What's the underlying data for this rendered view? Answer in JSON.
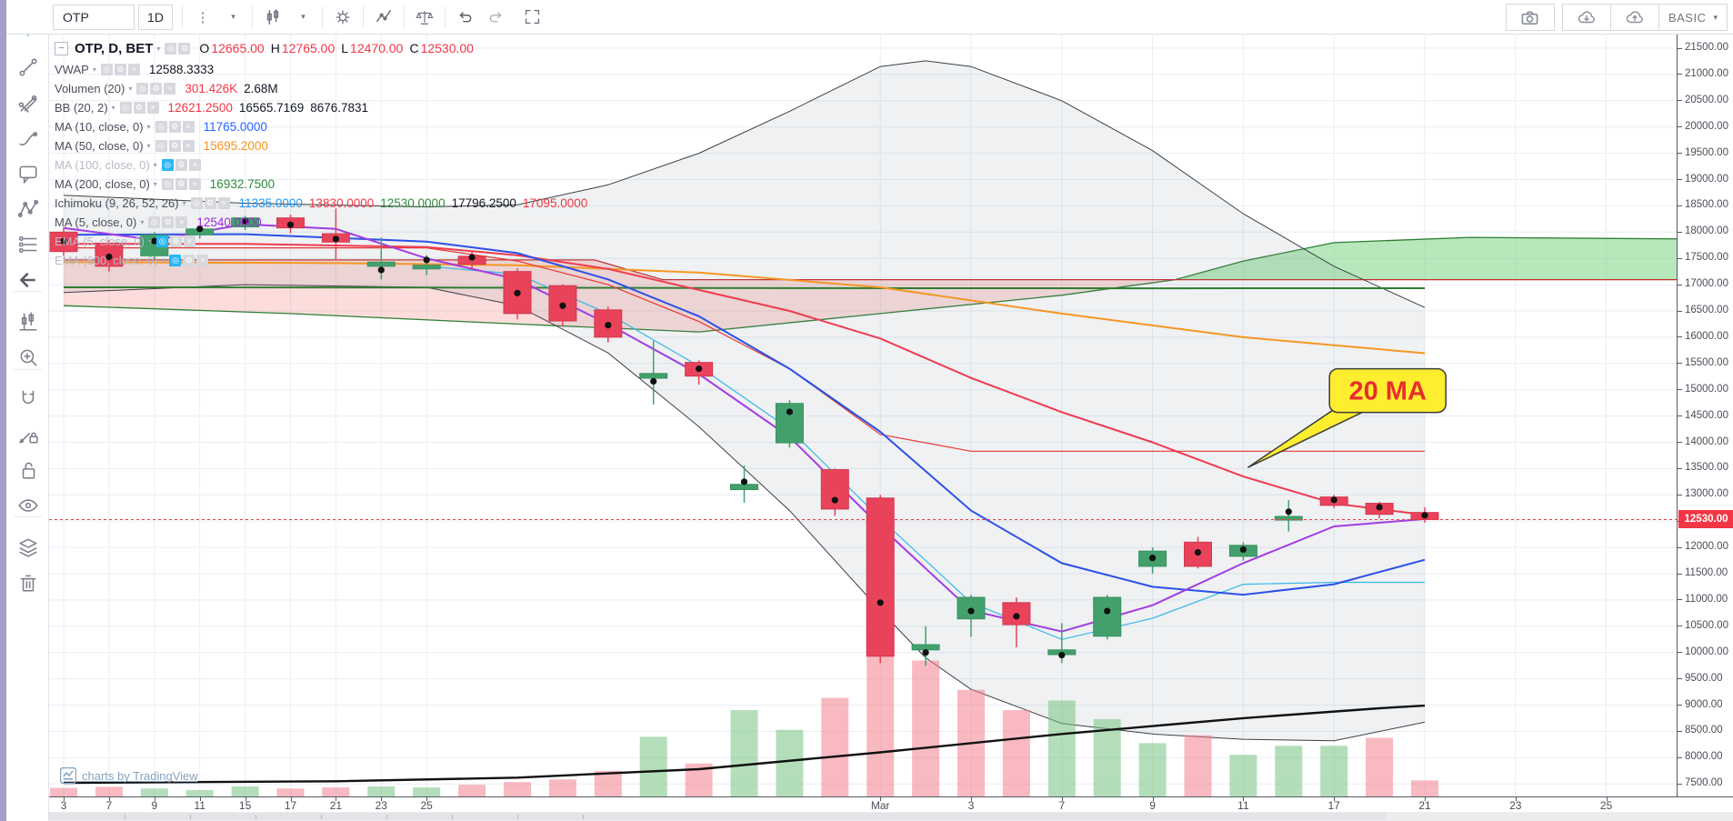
{
  "toolbar": {
    "symbol": "OTP",
    "interval": "1D",
    "left_icons": [
      "style-menu-dots",
      "style-menu-caret",
      "candles-icon",
      "candles-caret",
      "gear-icon",
      "indicators-icon",
      "compare-icon",
      "undo-icon",
      "redo-icon",
      "fullscreen-icon"
    ],
    "right": {
      "buttons": [
        "camera-icon",
        "cloud-load-icon",
        "cloud-save-icon"
      ],
      "plan_label": "BASIC"
    }
  },
  "sidebar": {
    "tools": [
      {
        "name": "crosshair",
        "group": 0
      },
      {
        "name": "trend-line",
        "group": 0
      },
      {
        "name": "pitchfork",
        "group": 0
      },
      {
        "name": "brush",
        "group": 0
      },
      {
        "name": "text-note",
        "group": 0
      },
      {
        "name": "xabcd-pattern",
        "group": 0
      },
      {
        "name": "forecast",
        "group": 0
      },
      {
        "name": "hide-drawings-arrow",
        "group": 0
      },
      {
        "name": "bar-pattern",
        "group": 1
      },
      {
        "name": "zoom-in",
        "group": 1
      },
      {
        "name": "magnet",
        "group": 2
      },
      {
        "name": "drawing-lock",
        "group": 2
      },
      {
        "name": "lock-all",
        "group": 2
      },
      {
        "name": "hide-all",
        "group": 2
      },
      {
        "name": "object-tree",
        "group": 3
      },
      {
        "name": "remove-drawings",
        "group": 3
      }
    ]
  },
  "legend": {
    "rows": [
      {
        "label": "OTP, D, BET",
        "main": true,
        "buttons": [
          "eye",
          "gear"
        ],
        "values": [
          [
            "O",
            "dark"
          ],
          [
            "12665.00",
            "red"
          ],
          [
            "H",
            "dark"
          ],
          [
            "12765.00",
            "red"
          ],
          [
            "L",
            "dark"
          ],
          [
            "12470.00",
            "red"
          ],
          [
            "C",
            "dark"
          ],
          [
            "12530.00",
            "red"
          ]
        ]
      },
      {
        "label": "VWAP",
        "buttons": [
          "eye",
          "gear",
          "close"
        ],
        "values": [
          [
            "12588.3333",
            "dark"
          ]
        ]
      },
      {
        "label": "Volumen (20)",
        "buttons": [
          "eye",
          "gear",
          "close"
        ],
        "values": [
          [
            "301.426K",
            "red"
          ],
          [
            "2.68M",
            "dark"
          ]
        ]
      },
      {
        "label": "BB (20, 2)",
        "buttons": [
          "eye",
          "gear",
          "close"
        ],
        "values": [
          [
            "12621.2500",
            "red"
          ],
          [
            "16565.7169",
            "dark"
          ],
          [
            "8676.7831",
            "dark"
          ]
        ]
      },
      {
        "label": "MA (10, close, 0)",
        "buttons": [
          "eye",
          "gear",
          "close"
        ],
        "values": [
          [
            "11765.0000",
            "blue"
          ]
        ]
      },
      {
        "label": "MA (50, close, 0)",
        "buttons": [
          "eye",
          "gear",
          "close"
        ],
        "values": [
          [
            "15695.2000",
            "orange"
          ]
        ]
      },
      {
        "label": "MA (100, close, 0)",
        "dimmed": true,
        "buttons": [
          "eye-active",
          "gear",
          "close"
        ],
        "values": []
      },
      {
        "label": "MA (200, close, 0)",
        "buttons": [
          "eye",
          "gear",
          "close"
        ],
        "values": [
          [
            "16932.7500",
            "green"
          ]
        ]
      },
      {
        "label": "Ichimoku (9, 26, 52, 26)",
        "buttons": [
          "eye",
          "gear",
          "close"
        ],
        "values": [
          [
            "11335.0000",
            "lightblue"
          ],
          [
            "13830.0000",
            "red"
          ],
          [
            "12530.0000",
            "green"
          ],
          [
            "17796.2500",
            "dark"
          ],
          [
            "17095.0000",
            "red"
          ]
        ]
      },
      {
        "label": "MA (5, close, 0)",
        "buttons": [
          "eye",
          "gear",
          "close"
        ],
        "values": [
          [
            "12540.0000",
            "purple"
          ]
        ]
      },
      {
        "label": "EMA (5, close, 0)",
        "dimmed": true,
        "buttons": [
          "eye-active",
          "gear",
          "close"
        ],
        "values": []
      },
      {
        "label": "EMA (600, close, 0)",
        "dimmed": true,
        "buttons": [
          "eye-active",
          "gear",
          "close"
        ],
        "values": []
      }
    ]
  },
  "chart_data": {
    "type": "candlestick",
    "symbol": "OTP",
    "exchange": "BET",
    "interval": "D",
    "last_ohlc": {
      "open": 12665.0,
      "high": 12765.0,
      "low": 12470.0,
      "close": 12530.0
    },
    "price_axis": {
      "max": 21500,
      "min": 7500,
      "step": 500,
      "last_price": "12530.00"
    },
    "candles_ohlcdv": [
      [
        18000,
        18090,
        17550,
        17630,
        17830,
        0.16,
        0
      ],
      [
        17790,
        17850,
        17250,
        17350,
        17530,
        0.18,
        0
      ],
      [
        17550,
        18000,
        17480,
        17950,
        17830,
        0.15,
        1
      ],
      [
        17950,
        18130,
        17880,
        18060,
        18060,
        0.12,
        1
      ],
      [
        18100,
        18310,
        18040,
        18270,
        18210,
        0.19,
        1
      ],
      [
        18270,
        18330,
        17980,
        18080,
        18140,
        0.15,
        0
      ],
      [
        17970,
        18450,
        17460,
        17810,
        17870,
        0.17,
        0
      ],
      [
        17350,
        17900,
        17100,
        17430,
        17280,
        0.19,
        1
      ],
      [
        17300,
        17560,
        17180,
        17370,
        17470,
        0.17,
        1
      ],
      [
        17540,
        17630,
        17290,
        17390,
        17520,
        0.22,
        0
      ],
      [
        17250,
        17310,
        16340,
        16450,
        16840,
        0.27,
        0
      ],
      [
        16980,
        17010,
        16200,
        16310,
        16600,
        0.32,
        0
      ],
      [
        16520,
        16580,
        15900,
        16000,
        16230,
        0.48,
        0
      ],
      [
        15220,
        15930,
        14720,
        15310,
        15160,
        1.12,
        1
      ],
      [
        15520,
        15560,
        15100,
        15260,
        15400,
        0.62,
        0
      ],
      [
        13100,
        13560,
        12850,
        13200,
        13250,
        1.62,
        1
      ],
      [
        13990,
        14800,
        13900,
        14740,
        14580,
        1.25,
        1
      ],
      [
        13480,
        13500,
        12600,
        12730,
        12900,
        1.85,
        0
      ],
      [
        12940,
        13000,
        9800,
        9930,
        10950,
        2.9,
        0
      ],
      [
        10050,
        10500,
        9750,
        10150,
        10000,
        2.55,
        0
      ],
      [
        10640,
        11100,
        10300,
        11050,
        10790,
        2.0,
        0
      ],
      [
        10950,
        11050,
        10100,
        10530,
        10690,
        1.62,
        0
      ],
      [
        9960,
        10560,
        9800,
        10050,
        9950,
        1.8,
        1
      ],
      [
        10310,
        11100,
        10250,
        11050,
        10790,
        1.45,
        1
      ],
      [
        11640,
        12000,
        11500,
        11930,
        11800,
        1.0,
        1
      ],
      [
        12100,
        12200,
        11600,
        11640,
        11905,
        1.15,
        0
      ],
      [
        11830,
        12100,
        11750,
        12040,
        11960,
        0.78,
        1
      ],
      [
        12520,
        12900,
        12300,
        12590,
        12680,
        0.95,
        1
      ],
      [
        12960,
        13000,
        12750,
        12800,
        12905,
        0.95,
        1
      ],
      [
        12840,
        12870,
        12550,
        12630,
        12765,
        1.1,
        0
      ],
      [
        12665,
        12765,
        12470,
        12530,
        12610,
        0.3,
        0
      ]
    ],
    "volume_max_m": 2.9,
    "time_labels": [
      {
        "i": 0,
        "t": "3"
      },
      {
        "i": 1,
        "t": "7"
      },
      {
        "i": 2,
        "t": "9"
      },
      {
        "i": 3,
        "t": "11"
      },
      {
        "i": 4,
        "t": "15"
      },
      {
        "i": 5,
        "t": "17"
      },
      {
        "i": 6,
        "t": "21"
      },
      {
        "i": 7,
        "t": "23"
      },
      {
        "i": 8,
        "t": "25"
      },
      {
        "i": 18,
        "t": "Mar"
      },
      {
        "i": 20,
        "t": "3"
      },
      {
        "i": 22,
        "t": "7"
      },
      {
        "i": 24,
        "t": "9"
      },
      {
        "i": 26,
        "t": "11"
      },
      {
        "i": 28,
        "t": "17"
      },
      {
        "i": 30,
        "t": "21"
      },
      {
        "i": 32,
        "t": "23"
      },
      {
        "i": 34,
        "t": "25"
      }
    ],
    "bb": {
      "fill": "rgba(135,144,162,0.13)",
      "line_color": "#3d4043",
      "upper": [
        [
          0,
          18700
        ],
        [
          4,
          18550
        ],
        [
          8,
          18480
        ],
        [
          10,
          18520
        ],
        [
          12,
          18900
        ],
        [
          14,
          19500
        ],
        [
          16,
          20300
        ],
        [
          18,
          21150
        ],
        [
          19,
          21260
        ],
        [
          20,
          21150
        ],
        [
          22,
          20500
        ],
        [
          24,
          19550
        ],
        [
          26,
          18350
        ],
        [
          28,
          17350
        ],
        [
          30,
          16566
        ]
      ],
      "lower": [
        [
          0,
          16850
        ],
        [
          4,
          17000
        ],
        [
          8,
          16950
        ],
        [
          10,
          16600
        ],
        [
          12,
          15700
        ],
        [
          14,
          14300
        ],
        [
          16,
          12700
        ],
        [
          18,
          10800
        ],
        [
          19,
          9900
        ],
        [
          20,
          9300
        ],
        [
          22,
          8650
        ],
        [
          24,
          8450
        ],
        [
          26,
          8350
        ],
        [
          28,
          8320
        ],
        [
          30,
          8677
        ]
      ]
    },
    "ichimoku_cloud": {
      "span_a_color": "#2e7d32",
      "span_b_color": "#c62828",
      "bear_fill": "rgba(239,83,80,0.20)",
      "bull_fill": "rgba(96,204,104,0.45)",
      "span_a": [
        [
          0,
          16600
        ],
        [
          5,
          16450
        ],
        [
          10,
          16250
        ],
        [
          14,
          16100
        ],
        [
          18,
          16450
        ],
        [
          22,
          16800
        ],
        [
          24.5,
          17095
        ],
        [
          26,
          17450
        ],
        [
          28,
          17800
        ],
        [
          31,
          17900
        ],
        [
          35.6,
          17870
        ]
      ],
      "span_b": [
        [
          0,
          17470
        ],
        [
          11.7,
          17470
        ],
        [
          13.2,
          17095
        ],
        [
          35.6,
          17095
        ]
      ],
      "cross_i": 24.5
    },
    "series": [
      {
        "name": "EMA 600",
        "color": "#111111",
        "width": 2.4,
        "points": [
          [
            0,
            7520
          ],
          [
            6,
            7550
          ],
          [
            10,
            7620
          ],
          [
            14,
            7780
          ],
          [
            18,
            8100
          ],
          [
            22,
            8450
          ],
          [
            26,
            8750
          ],
          [
            29,
            8940
          ],
          [
            30,
            8990
          ]
        ]
      },
      {
        "name": "MA 200",
        "color": "#2e7d32",
        "width": 2,
        "points": [
          [
            0,
            16950
          ],
          [
            8,
            16945
          ],
          [
            16,
            16935
          ],
          [
            24,
            16930
          ],
          [
            30,
            16933
          ]
        ]
      },
      {
        "name": "MA 50",
        "color": "#f59722",
        "width": 2,
        "points": [
          [
            0,
            17430
          ],
          [
            6,
            17410
          ],
          [
            10,
            17370
          ],
          [
            14,
            17230
          ],
          [
            18,
            16950
          ],
          [
            22,
            16450
          ],
          [
            26,
            16000
          ],
          [
            30,
            15695
          ]
        ]
      },
      {
        "name": "Ichimoku kijun",
        "color": "#e53935",
        "width": 1.2,
        "points": [
          [
            0,
            17700
          ],
          [
            8,
            17700
          ],
          [
            10,
            17450
          ],
          [
            12,
            17000
          ],
          [
            14,
            16300
          ],
          [
            16,
            15400
          ],
          [
            18,
            14150
          ],
          [
            20,
            13830
          ],
          [
            30,
            13830
          ]
        ]
      },
      {
        "name": "Ichimoku tenkan",
        "color": "#35b8e8",
        "width": 1.2,
        "points": [
          [
            8,
            17350
          ],
          [
            10,
            17200
          ],
          [
            12,
            16450
          ],
          [
            14,
            15450
          ],
          [
            16,
            14250
          ],
          [
            18,
            12550
          ],
          [
            20,
            10950
          ],
          [
            22,
            10250
          ],
          [
            24,
            10650
          ],
          [
            26,
            11300
          ],
          [
            28,
            11335
          ],
          [
            30,
            11335
          ]
        ]
      },
      {
        "name": "BB basis 20 MA",
        "color": "#ef3b4f",
        "width": 2,
        "points": [
          [
            0,
            17775
          ],
          [
            4,
            17775
          ],
          [
            8,
            17715
          ],
          [
            10,
            17560
          ],
          [
            12,
            17300
          ],
          [
            14,
            16900
          ],
          [
            16,
            16500
          ],
          [
            18,
            15975
          ],
          [
            20,
            15225
          ],
          [
            22,
            14575
          ],
          [
            24,
            14000
          ],
          [
            26,
            13350
          ],
          [
            28,
            12835
          ],
          [
            30,
            12621
          ]
        ]
      },
      {
        "name": "MA 10",
        "color": "#2b50e8",
        "width": 2,
        "points": [
          [
            0,
            17950
          ],
          [
            4,
            17960
          ],
          [
            8,
            17820
          ],
          [
            10,
            17600
          ],
          [
            12,
            17100
          ],
          [
            14,
            16400
          ],
          [
            16,
            15400
          ],
          [
            18,
            14200
          ],
          [
            20,
            12700
          ],
          [
            22,
            11700
          ],
          [
            24,
            11250
          ],
          [
            26,
            11100
          ],
          [
            28,
            11300
          ],
          [
            30,
            11765
          ]
        ]
      },
      {
        "name": "MA 5",
        "color": "#a23de0",
        "width": 2,
        "points": [
          [
            0,
            18080
          ],
          [
            2,
            17850
          ],
          [
            4,
            18150
          ],
          [
            6,
            18060
          ],
          [
            8,
            17500
          ],
          [
            10,
            17100
          ],
          [
            12,
            16250
          ],
          [
            14,
            15300
          ],
          [
            16,
            14100
          ],
          [
            18,
            12400
          ],
          [
            20,
            10800
          ],
          [
            22,
            10400
          ],
          [
            24,
            10900
          ],
          [
            26,
            11700
          ],
          [
            28,
            12400
          ],
          [
            30,
            12540
          ]
        ]
      }
    ],
    "colors": {
      "candle_up": "#43a06d",
      "candle_up_border": "#35925f",
      "candle_down": "#e8435a",
      "candle_down_border": "#d23850",
      "vol_up": "rgba(118,194,129,0.55)",
      "vol_down": "rgba(242,128,141,0.55)",
      "grid": "#e9eef5",
      "last_price_line": "#f23645",
      "dot": "#111111"
    },
    "callout": {
      "text": "20 MA",
      "fill": "#ffee30",
      "border": "#3c3c3c",
      "text_color": "#e82e2e",
      "box": {
        "i": 27.9,
        "price": 15400,
        "w": 128,
        "h": 48
      },
      "tip": {
        "i": 26.1,
        "price": 13520
      }
    }
  },
  "watermark": {
    "text": "charts by TradingView"
  },
  "value_colors": {
    "dark": "#131722",
    "red": "#f23645",
    "blue": "#2962ff",
    "orange": "#f7941d",
    "green": "#2e8b3a",
    "lightblue": "#2196f3",
    "purple": "#a02ad4"
  }
}
